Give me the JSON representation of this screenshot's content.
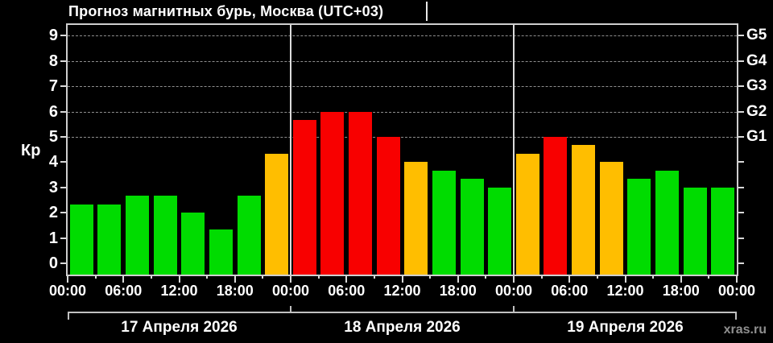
{
  "header": {
    "title": "Прогноз магнитных бурь, Москва (UTC+03)"
  },
  "watermark": "xras.ru",
  "chart_data": {
    "type": "bar",
    "title": "Прогноз магнитных бурь, Москва (UTC+03)",
    "ylabel": "Кр",
    "ylim": [
      0,
      9
    ],
    "yticks": [
      0,
      1,
      2,
      3,
      4,
      5,
      6,
      7,
      8,
      9
    ],
    "right_axis_labels": [
      {
        "kp": 5,
        "label": "G1"
      },
      {
        "kp": 6,
        "label": "G2"
      },
      {
        "kp": 7,
        "label": "G3"
      },
      {
        "kp": 8,
        "label": "G4"
      },
      {
        "kp": 9,
        "label": "G5"
      }
    ],
    "dashed_levels": [
      5,
      6,
      7,
      8,
      9
    ],
    "grid": "dashed horizontal at storm levels G1-G5",
    "hours_per_bar": 3,
    "x_tick_labels": [
      "00:00",
      "06:00",
      "12:00",
      "18:00",
      "00:00",
      "06:00",
      "12:00",
      "18:00",
      "00:00",
      "06:00",
      "12:00",
      "18:00",
      "00:00"
    ],
    "palette": {
      "green": "#00DC00",
      "orange": "#FFBE00",
      "red": "#F80000"
    },
    "days": [
      {
        "date": "17 Апреля 2026",
        "values": [
          2.33,
          2.33,
          2.67,
          2.67,
          2.0,
          1.33,
          2.67,
          4.33
        ],
        "colors": [
          "green",
          "green",
          "green",
          "green",
          "green",
          "green",
          "green",
          "orange"
        ]
      },
      {
        "date": "18 Апреля 2026",
        "values": [
          5.67,
          6.0,
          6.0,
          5.0,
          4.0,
          3.67,
          3.33,
          3.0
        ],
        "colors": [
          "red",
          "red",
          "red",
          "red",
          "orange",
          "green",
          "green",
          "green"
        ]
      },
      {
        "date": "19 Апреля 2026",
        "values": [
          4.33,
          5.0,
          4.67,
          4.0,
          3.33,
          3.67,
          3.0,
          3.0
        ],
        "colors": [
          "orange",
          "red",
          "orange",
          "orange",
          "green",
          "green",
          "green",
          "green"
        ]
      }
    ]
  }
}
